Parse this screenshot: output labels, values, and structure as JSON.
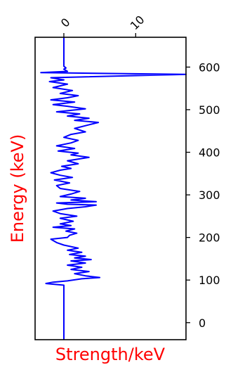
{
  "chart_data": {
    "type": "line",
    "title": "",
    "xlabel": "Strength/keV",
    "ylabel": "Energy (keV)",
    "label_color": "#ff0000",
    "line_color": "#0000ff",
    "orientation": "vertical",
    "xlim": [
      -4,
      17
    ],
    "ylim": [
      -40,
      670
    ],
    "x_ticks": [
      0,
      10
    ],
    "x_tick_labels": [
      "0",
      "10"
    ],
    "x_tick_position": "top",
    "y_ticks": [
      0,
      100,
      200,
      300,
      400,
      500,
      600
    ],
    "y_tick_labels": [
      "0",
      "100",
      "200",
      "300",
      "400",
      "500",
      "600"
    ],
    "y_tick_position": "right",
    "grid": false,
    "series": [
      {
        "points": [
          [
            0,
            -40
          ],
          [
            0,
            0
          ],
          [
            0,
            50
          ],
          [
            0,
            88
          ],
          [
            -2.5,
            92
          ],
          [
            -1.5,
            95
          ],
          [
            0.5,
            98
          ],
          [
            2.5,
            103
          ],
          [
            5,
            106
          ],
          [
            3,
            110
          ],
          [
            1.5,
            115
          ],
          [
            3.5,
            120
          ],
          [
            1,
            125
          ],
          [
            2.5,
            130
          ],
          [
            0.5,
            135
          ],
          [
            3,
            140
          ],
          [
            1,
            145
          ],
          [
            3.8,
            148
          ],
          [
            1.5,
            152
          ],
          [
            3,
            156
          ],
          [
            0.8,
            160
          ],
          [
            2.5,
            165
          ],
          [
            0.5,
            170
          ],
          [
            2,
            175
          ],
          [
            0,
            182
          ],
          [
            -1,
            188
          ],
          [
            -1.8,
            196
          ],
          [
            0.5,
            200
          ],
          [
            0.8,
            205
          ],
          [
            1.8,
            210
          ],
          [
            0.3,
            215
          ],
          [
            1.5,
            220
          ],
          [
            -1.5,
            224
          ],
          [
            1,
            228
          ],
          [
            -0.5,
            232
          ],
          [
            1.3,
            238
          ],
          [
            -0.5,
            245
          ],
          [
            1.8,
            250
          ],
          [
            -0.5,
            256
          ],
          [
            -1.5,
            262
          ],
          [
            0.5,
            268
          ],
          [
            3,
            272
          ],
          [
            4.5,
            276
          ],
          [
            0.5,
            278
          ],
          [
            -1,
            281
          ],
          [
            4.5,
            284
          ],
          [
            1,
            288
          ],
          [
            3,
            292
          ],
          [
            -0.5,
            296
          ],
          [
            1,
            302
          ],
          [
            2.2,
            308
          ],
          [
            -0.5,
            315
          ],
          [
            -1,
            322
          ],
          [
            0.8,
            328
          ],
          [
            -1.3,
            335
          ],
          [
            1.2,
            341
          ],
          [
            -0.5,
            346
          ],
          [
            -1.8,
            352
          ],
          [
            -0.5,
            358
          ],
          [
            1,
            362
          ],
          [
            -0.3,
            367
          ],
          [
            2,
            373
          ],
          [
            0.5,
            380
          ],
          [
            3.5,
            388
          ],
          [
            1,
            394
          ],
          [
            2,
            398
          ],
          [
            -0.8,
            403
          ],
          [
            1.5,
            409
          ],
          [
            -1,
            415
          ],
          [
            1,
            422
          ],
          [
            2,
            428
          ],
          [
            0,
            435
          ],
          [
            1,
            442
          ],
          [
            3,
            448
          ],
          [
            1.5,
            456
          ],
          [
            4.8,
            470
          ],
          [
            1.5,
            475
          ],
          [
            3.5,
            480
          ],
          [
            0.5,
            485
          ],
          [
            2.2,
            490
          ],
          [
            -1,
            495
          ],
          [
            3,
            502
          ],
          [
            0.5,
            508
          ],
          [
            -1.5,
            512
          ],
          [
            1.5,
            518
          ],
          [
            -1.8,
            523
          ],
          [
            0.5,
            528
          ],
          [
            2,
            533
          ],
          [
            -0.5,
            538
          ],
          [
            1.2,
            545
          ],
          [
            -1.5,
            552
          ],
          [
            0.5,
            560
          ],
          [
            -2,
            566
          ],
          [
            0,
            570
          ],
          [
            -1.8,
            575
          ],
          [
            17,
            583
          ],
          [
            -3.2,
            587
          ],
          [
            0.5,
            590
          ],
          [
            0,
            595
          ],
          [
            0.3,
            598
          ],
          [
            0,
            602
          ],
          [
            0,
            670
          ]
        ]
      }
    ]
  }
}
